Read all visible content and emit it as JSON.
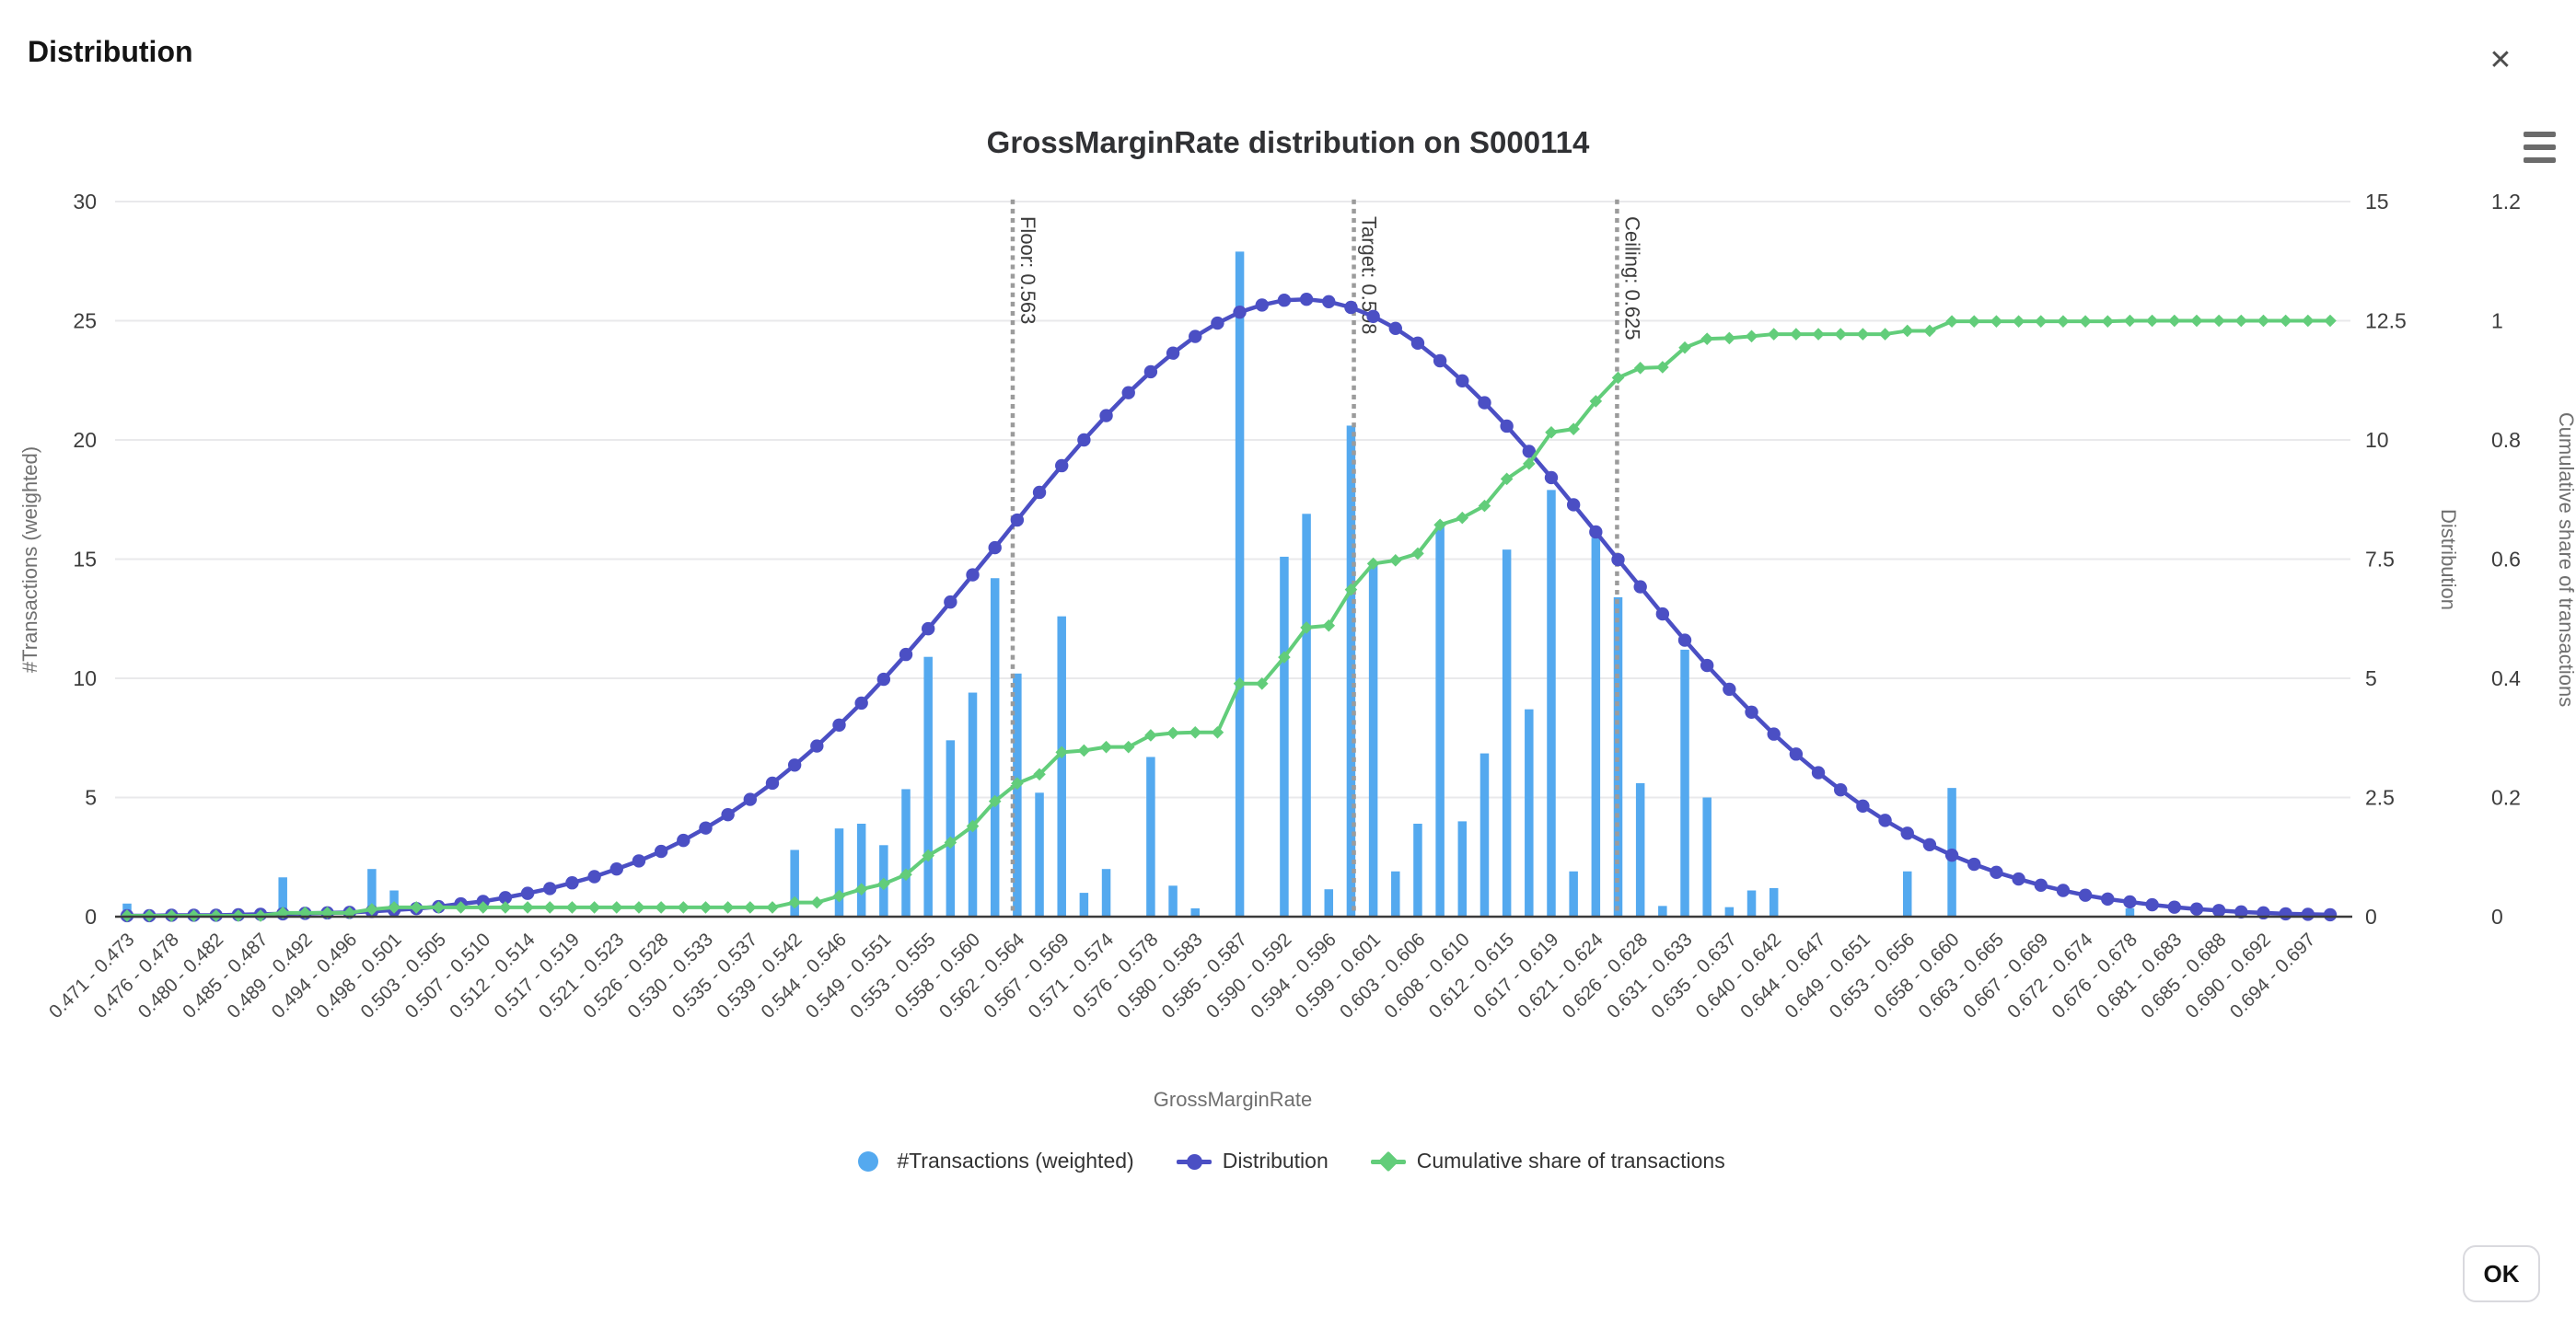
{
  "modal": {
    "title": "Distribution",
    "close_label": "✕",
    "ok_label": "OK"
  },
  "chart": {
    "title": "GrossMarginRate distribution on S000114",
    "legend": [
      {
        "label": "#Transactions (weighted)",
        "color": "#54a9ef",
        "marker": "circle"
      },
      {
        "label": "Distribution",
        "color": "#4b4fc4",
        "marker": "line-circle"
      },
      {
        "label": "Cumulative share of transactions",
        "color": "#62cd7a",
        "marker": "line-diamond"
      }
    ]
  },
  "chart_data": {
    "type": "bar",
    "title": "GrossMarginRate distribution on S000114",
    "xlabel": "GrossMarginRate",
    "grid": true,
    "legend_position": "bottom",
    "bins": 100,
    "bin_start": 0.471,
    "bin_width": 0.002283,
    "x_labels_every": 2,
    "categories": [
      "0.471 - 0.473",
      "0.476 - 0.478",
      "0.480 - 0.482",
      "0.485 - 0.487",
      "0.489 - 0.492",
      "0.494 - 0.496",
      "0.498 - 0.501",
      "0.503 - 0.505",
      "0.507 - 0.510",
      "0.512 - 0.514",
      "0.517 - 0.519",
      "0.521 - 0.523",
      "0.526 - 0.528",
      "0.530 - 0.533",
      "0.535 - 0.537",
      "0.539 - 0.542",
      "0.544 - 0.546",
      "0.549 - 0.551",
      "0.553 - 0.555",
      "0.558 - 0.560",
      "0.562 - 0.564",
      "0.567 - 0.569",
      "0.571 - 0.574",
      "0.576 - 0.578",
      "0.580 - 0.583",
      "0.585 - 0.587",
      "0.590 - 0.592",
      "0.594 - 0.596",
      "0.599 - 0.601",
      "0.603 - 0.606",
      "0.608 - 0.610",
      "0.612 - 0.615",
      "0.617 - 0.619",
      "0.621 - 0.624",
      "0.626 - 0.628",
      "0.631 - 0.633",
      "0.635 - 0.637",
      "0.640 - 0.642",
      "0.644 - 0.647",
      "0.649 - 0.651",
      "0.653 - 0.656",
      "0.658 - 0.660",
      "0.663 - 0.665",
      "0.667 - 0.669",
      "0.672 - 0.674",
      "0.676 - 0.678",
      "0.681 - 0.683",
      "0.685 - 0.688",
      "0.690 - 0.692",
      "0.694 - 0.697"
    ],
    "axes": {
      "left": {
        "title": "#Transactions (weighted)",
        "max": 30,
        "ticks": [
          "0",
          "5",
          "10",
          "15",
          "20",
          "25",
          "30"
        ]
      },
      "right_distribution": {
        "title": "Distribution",
        "max": 15,
        "ticks": [
          "0",
          "2.5",
          "5",
          "7.5",
          "10",
          "12.5",
          "15"
        ]
      },
      "right_cumulative": {
        "title": "Cumulative share of transactions",
        "max": 1.2,
        "ticks": [
          "0",
          "0.2",
          "0.4",
          "0.6",
          "0.8",
          "1",
          "1.2"
        ]
      }
    },
    "reference_lines": [
      {
        "label": "Floor: 0.563",
        "value": 0.563
      },
      {
        "label": "Target: 0.598",
        "value": 0.598
      },
      {
        "label": "Ceiling: 0.625",
        "value": 0.625
      }
    ],
    "series": [
      {
        "name": "#Transactions (weighted)",
        "type": "bar",
        "axis": "left",
        "color": "#54a9ef",
        "values": [
          0.55,
          0,
          0,
          0,
          0,
          0,
          0,
          1.65,
          0,
          0,
          0,
          2.0,
          1.1,
          0,
          0,
          0,
          0,
          0,
          0,
          0,
          0,
          0,
          0,
          0,
          0,
          0,
          0,
          0,
          0,
          0,
          2.8,
          0,
          3.7,
          3.9,
          3.0,
          5.35,
          10.9,
          7.4,
          9.4,
          14.2,
          10.2,
          5.2,
          12.6,
          1.0,
          2.0,
          0,
          6.7,
          1.3,
          0.35,
          0,
          27.9,
          0,
          15.1,
          16.9,
          1.15,
          20.6,
          14.8,
          1.9,
          3.9,
          16.4,
          4.0,
          6.85,
          15.4,
          8.7,
          17.9,
          1.9,
          15.9,
          13.4,
          5.6,
          0.45,
          11.2,
          5.0,
          0.4,
          1.1,
          1.2,
          0,
          0,
          0,
          0,
          0,
          1.9,
          0,
          5.4,
          0,
          0,
          0,
          0,
          0,
          0,
          0,
          0.35,
          0,
          0,
          0,
          0,
          0,
          0,
          0,
          0,
          0
        ]
      },
      {
        "name": "Distribution",
        "type": "line",
        "axis": "right_distribution",
        "color": "#4b4fc4",
        "marker": "circle",
        "values": [
          0.02,
          0.02,
          0.03,
          0.03,
          0.03,
          0.04,
          0.05,
          0.06,
          0.07,
          0.08,
          0.09,
          0.11,
          0.14,
          0.17,
          0.21,
          0.27,
          0.32,
          0.4,
          0.49,
          0.59,
          0.71,
          0.84,
          1.0,
          1.17,
          1.37,
          1.6,
          1.86,
          2.14,
          2.46,
          2.8,
          3.18,
          3.58,
          4.02,
          4.48,
          4.98,
          5.5,
          6.04,
          6.6,
          7.17,
          7.74,
          8.32,
          8.9,
          9.46,
          10.0,
          10.51,
          10.99,
          11.43,
          11.82,
          12.17,
          12.45,
          12.68,
          12.83,
          12.93,
          12.95,
          12.9,
          12.78,
          12.59,
          12.34,
          12.03,
          11.66,
          11.24,
          10.78,
          10.29,
          9.76,
          9.21,
          8.64,
          8.07,
          7.49,
          6.92,
          6.35,
          5.8,
          5.27,
          4.77,
          4.29,
          3.83,
          3.41,
          3.02,
          2.66,
          2.32,
          2.02,
          1.75,
          1.51,
          1.29,
          1.1,
          0.93,
          0.79,
          0.66,
          0.55,
          0.45,
          0.37,
          0.31,
          0.25,
          0.2,
          0.16,
          0.13,
          0.1,
          0.08,
          0.06,
          0.05,
          0.04
        ]
      },
      {
        "name": "Cumulative share of transactions",
        "type": "line",
        "axis": "right_cumulative",
        "color": "#62cd7a",
        "marker": "diamond",
        "values": [
          0.0016,
          0.0016,
          0.0016,
          0.0016,
          0.0016,
          0.0016,
          0.0016,
          0.0064,
          0.0064,
          0.0064,
          0.0064,
          0.0124,
          0.0156,
          0.0156,
          0.0156,
          0.0156,
          0.0156,
          0.0156,
          0.0156,
          0.0156,
          0.0156,
          0.0156,
          0.0156,
          0.0156,
          0.0156,
          0.0156,
          0.0156,
          0.0156,
          0.0156,
          0.0156,
          0.0238,
          0.0238,
          0.0347,
          0.0461,
          0.0549,
          0.0706,
          0.1026,
          0.1244,
          0.152,
          0.1937,
          0.2236,
          0.2389,
          0.2759,
          0.2788,
          0.2847,
          0.2847,
          0.3043,
          0.3082,
          0.3092,
          0.3092,
          0.3911,
          0.3911,
          0.4354,
          0.4851,
          0.4884,
          0.5489,
          0.5924,
          0.5979,
          0.6094,
          0.6575,
          0.6693,
          0.6894,
          0.7346,
          0.7601,
          0.8127,
          0.8183,
          0.865,
          0.9043,
          0.9207,
          0.9221,
          0.9549,
          0.9696,
          0.9708,
          0.974,
          0.9775,
          0.9775,
          0.9775,
          0.9775,
          0.9775,
          0.9775,
          0.9831,
          0.9831,
          0.999,
          0.999,
          0.999,
          0.999,
          0.999,
          0.999,
          0.999,
          0.999,
          1.0,
          1.0,
          1.0,
          1.0,
          1.0,
          1.0,
          1.0,
          1.0,
          1.0,
          1.0
        ]
      }
    ]
  }
}
